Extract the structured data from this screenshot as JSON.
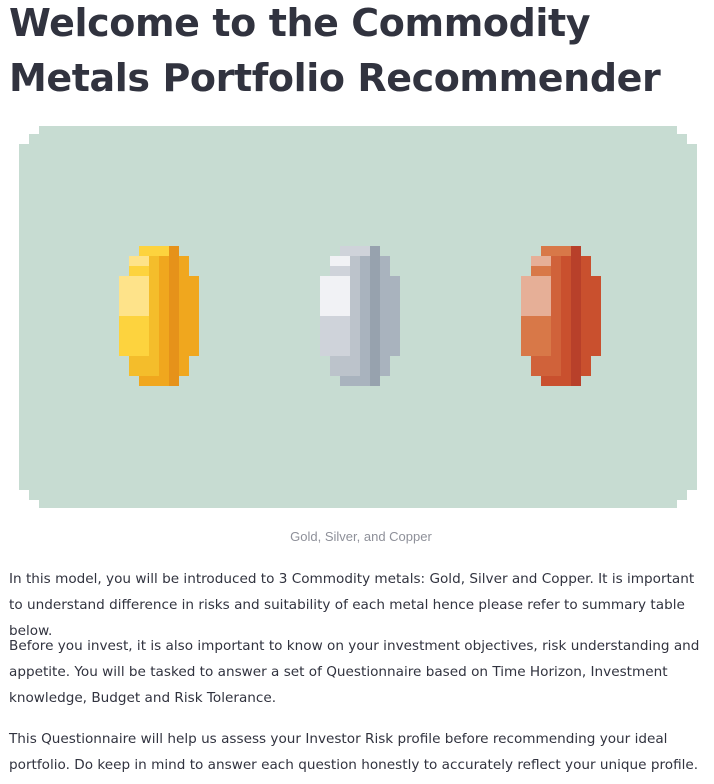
{
  "page": {
    "title": "Welcome to the Commodity Metals Portfolio Recommender"
  },
  "banner": {
    "caption": "Gold, Silver, and Copper",
    "background_color": "#c7dcd2",
    "coins": [
      {
        "name": "Gold",
        "light": "#fee38a",
        "mid": "#fdd33e",
        "dark": "#f0a71e",
        "deep": "#e6921a"
      },
      {
        "name": "Silver",
        "light": "#f1f2f5",
        "mid": "#cfd3da",
        "dark": "#a9b3be",
        "deep": "#97a2ae"
      },
      {
        "name": "Copper",
        "light": "#e6af97",
        "mid": "#d87848",
        "dark": "#c9502e",
        "deep": "#b8402a"
      }
    ]
  },
  "paragraphs": [
    "In this model, you will be introduced to 3 Commodity metals: Gold, Silver and Copper. It is important to understand difference in risks and suitability of each metal hence please refer to summary table below.",
    "Before you invest, it is also important to know on your investment objectives, risk understanding and appetite. You will be tasked to answer a set of Questionnaire based on Time Horizon, Investment knowledge, Budget and Risk Tolerance.",
    "This Questionnaire will help us assess your Investor Risk profile before recommending your ideal portfolio. Do keep in mind to answer each question honestly to accurately reflect your unique profile."
  ]
}
